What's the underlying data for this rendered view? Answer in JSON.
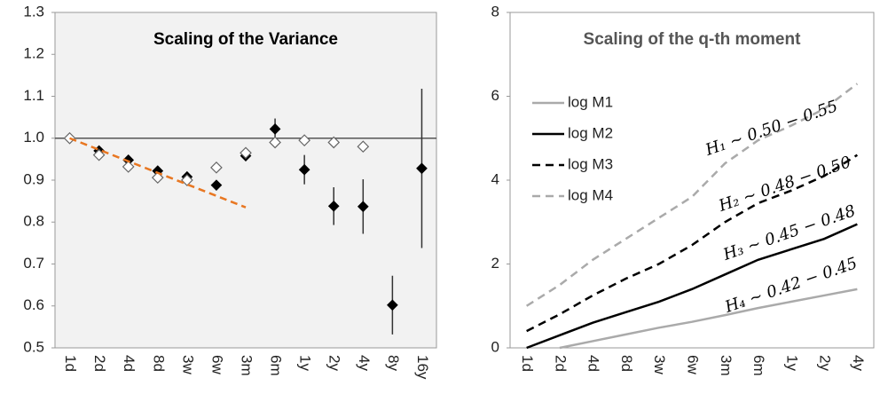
{
  "chart_data": [
    {
      "type": "dot-errorbar",
      "title": "Scaling of the Variance",
      "categories": [
        "1d",
        "2d",
        "4d",
        "8d",
        "3w",
        "6w",
        "3m",
        "6m",
        "1y",
        "2y",
        "4y",
        "8y",
        "16y"
      ],
      "series": [
        {
          "color": "#000000",
          "marker": "filled-diamond",
          "values": [
            1.0,
            0.97,
            0.948,
            0.922,
            0.908,
            0.888,
            0.958,
            1.022,
            0.925,
            0.838,
            0.837,
            0.602,
            0.928
          ],
          "errors": [
            null,
            null,
            null,
            null,
            null,
            null,
            0.012,
            0.025,
            0.035,
            0.045,
            0.065,
            0.07,
            0.19
          ]
        },
        {
          "color": "#666666",
          "marker": "open-diamond",
          "values": [
            1.0,
            0.96,
            0.932,
            0.906,
            0.9,
            0.93,
            0.965,
            0.99,
            0.995,
            0.99,
            0.98,
            null,
            null
          ]
        },
        {
          "color": "#e87722",
          "marker": "dashed-line",
          "values": [
            1.0,
            0.9725,
            0.945,
            0.9175,
            0.89,
            0.8625,
            0.835,
            null,
            null,
            null,
            null,
            null,
            null
          ]
        }
      ],
      "reference_line": {
        "value": 1,
        "color": "#555555"
      },
      "ylim": [
        0.5,
        1.3
      ],
      "yticks": [
        0.5,
        0.6,
        0.7,
        0.8,
        0.9,
        {
          "value": 1,
          "label": "1.0"
        },
        1.1,
        1.2,
        1.3
      ],
      "background": "#f2f2f2"
    },
    {
      "type": "line",
      "title": "Scaling of the q-th moment",
      "categories": [
        "1d",
        "2d",
        "4d",
        "8d",
        "3w",
        "6w",
        "3m",
        "6m",
        "1y",
        "2y",
        "4y"
      ],
      "series": [
        {
          "name": "log M1",
          "color": "#aaaaaa",
          "dash": false,
          "values": [
            null,
            0,
            0.16,
            0.32,
            0.48,
            0.62,
            0.78,
            0.95,
            1.1,
            1.25,
            1.4
          ]
        },
        {
          "name": "log M2",
          "color": "#000000",
          "dash": false,
          "values": [
            0,
            0.3,
            0.6,
            0.85,
            1.1,
            1.4,
            1.75,
            2.1,
            2.35,
            2.6,
            2.95
          ]
        },
        {
          "name": "log M3",
          "color": "#000000",
          "dash": true,
          "values": [
            0.4,
            0.8,
            1.25,
            1.65,
            2.0,
            2.45,
            3.0,
            3.45,
            3.75,
            4.1,
            4.6
          ]
        },
        {
          "name": "log M4",
          "color": "#aaaaaa",
          "dash": true,
          "values": [
            1.0,
            1.5,
            2.1,
            2.6,
            3.1,
            3.6,
            4.4,
            4.95,
            5.3,
            5.7,
            6.3
          ]
        }
      ],
      "annotations": [
        "H₁ ~ 0.50 − 0.55",
        "H₂ ~ 0.48 − 0.50",
        "H₃ ~ 0.45 − 0.48",
        "H₄ ~ 0.42 − 0.45"
      ],
      "ylim": [
        0,
        8
      ],
      "yticks": [
        0,
        2,
        4,
        6,
        8
      ],
      "legend": "upper-left",
      "background": "#ffffff"
    }
  ]
}
